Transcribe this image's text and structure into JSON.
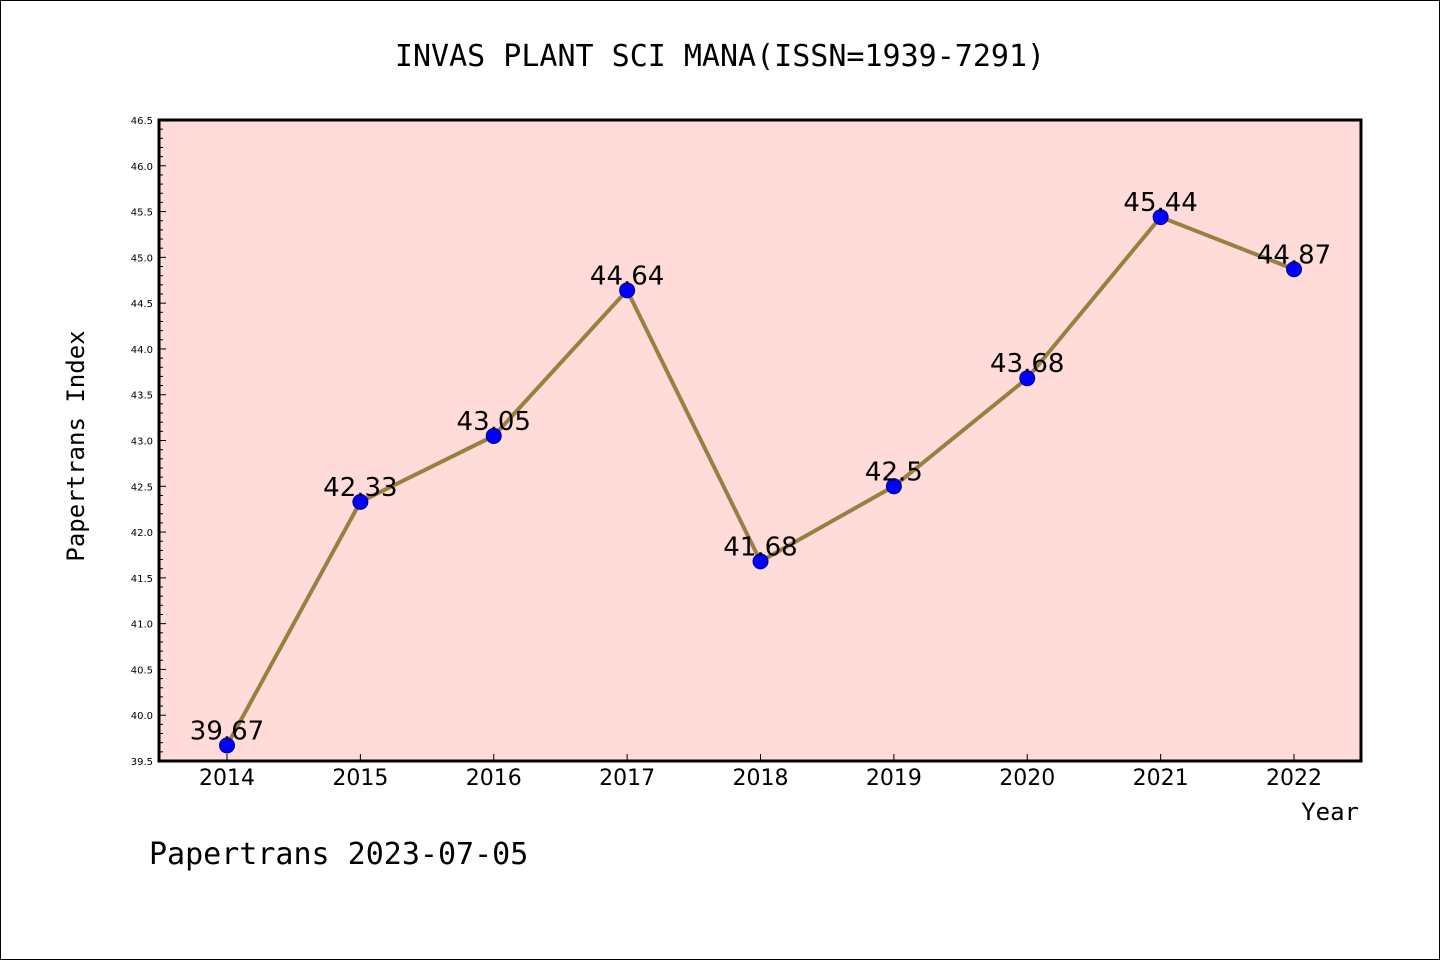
{
  "chart_data": {
    "type": "line",
    "title": "INVAS PLANT SCI MANA(ISSN=1939-7291)",
    "xlabel": "Year",
    "ylabel": "Papertrans Index",
    "x": [
      "2014",
      "2015",
      "2016",
      "2017",
      "2018",
      "2019",
      "2020",
      "2021",
      "2022"
    ],
    "values": [
      39.67,
      42.33,
      43.05,
      44.64,
      41.68,
      42.5,
      43.68,
      45.44,
      44.87
    ],
    "data_labels": [
      "39.67",
      "42.33",
      "43.05",
      "44.64",
      "41.68",
      "42.5",
      "43.68",
      "45.44",
      "44.87"
    ],
    "ylim": [
      39.5,
      46.5
    ],
    "yticks": [
      "39.5",
      "40.0",
      "40.5",
      "41.0",
      "41.5",
      "42.0",
      "42.5",
      "43.0",
      "43.5",
      "44.0",
      "44.5",
      "45.0",
      "45.5",
      "46.0",
      "46.5"
    ],
    "grid": false,
    "legend": "none",
    "colors": {
      "plot_background": "#ffdbd9",
      "line": "#9a8040",
      "marker": "#0000ff",
      "marker_edge": "#00008b"
    }
  },
  "footer": "Papertrans 2023-07-05"
}
